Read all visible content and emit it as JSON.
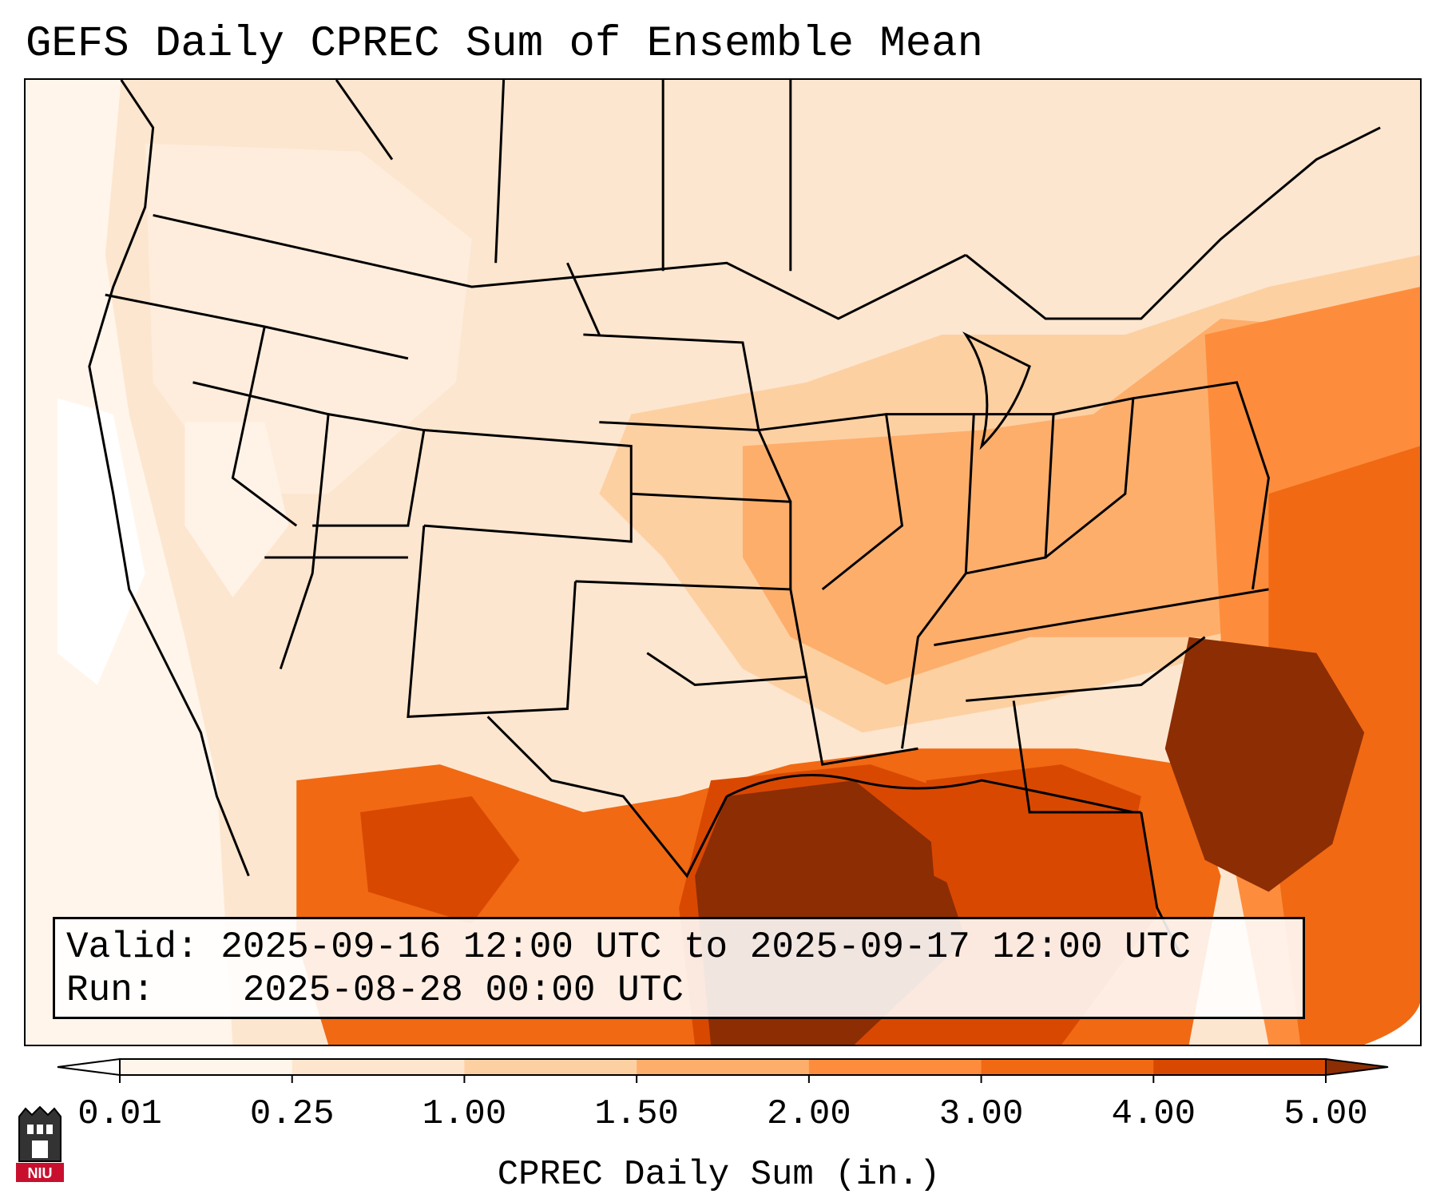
{
  "title": "GEFS Daily CPREC Sum of Ensemble Mean",
  "info": {
    "valid_label": "Valid:",
    "valid_value": "2025-09-16 12:00 UTC to 2025-09-17 12:00 UTC",
    "run_label": "Run:",
    "run_value": "2025-08-28 00:00 UTC"
  },
  "colorbar": {
    "label": "CPREC Daily Sum (in.)",
    "ticks": [
      "0.01",
      "0.25",
      "1.00",
      "1.50",
      "2.00",
      "3.00",
      "4.00",
      "5.00"
    ],
    "colors": [
      "#fff5eb",
      "#fee6ce",
      "#fdd0a2",
      "#fdae6b",
      "#fd8d3c",
      "#f16913",
      "#d94801",
      "#8c2d04"
    ],
    "extend_colors": {
      "low": "#ffffff",
      "high": "#8c2d04"
    }
  },
  "logo": {
    "text": "NIU",
    "icon": "niu-castle-logo-icon"
  }
}
